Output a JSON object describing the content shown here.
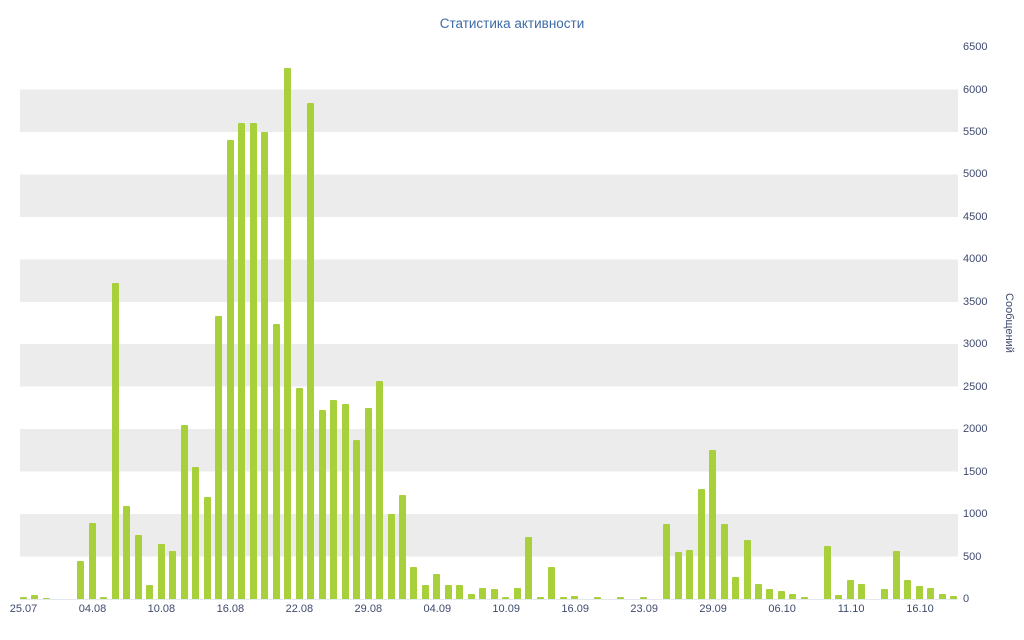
{
  "chart_data": {
    "type": "bar",
    "title": "Статистика активности",
    "xlabel": "",
    "ylabel": "Сообщений",
    "ylim": [
      0,
      6500
    ],
    "ytick_step": 500,
    "y_ticks": [
      0,
      500,
      1000,
      1500,
      2000,
      2500,
      3000,
      3500,
      4000,
      4500,
      5000,
      5500,
      6000,
      6500
    ],
    "grid": "horizontal-stripes",
    "legend": "off",
    "x_labels": [
      "25.07",
      "04.08",
      "10.08",
      "16.08",
      "22.08",
      "29.08",
      "04.09",
      "10.09",
      "16.09",
      "23.09",
      "29.09",
      "06.10",
      "11.10",
      "16.10"
    ],
    "x_label_every": 6,
    "values": [
      30,
      45,
      15,
      0,
      0,
      450,
      900,
      20,
      3720,
      1100,
      750,
      170,
      650,
      560,
      2050,
      1550,
      1200,
      3330,
      5400,
      5600,
      5600,
      5500,
      3240,
      6250,
      2480,
      5840,
      2230,
      2340,
      2300,
      1870,
      2250,
      2570,
      1000,
      1230,
      380,
      170,
      300,
      160,
      170,
      60,
      130,
      120,
      30,
      130,
      730,
      30,
      380,
      30,
      40,
      0,
      30,
      0,
      20,
      0,
      30,
      0,
      880,
      550,
      580,
      1300,
      1750,
      880,
      260,
      700,
      180,
      120,
      100,
      60,
      20,
      0,
      620,
      50,
      220,
      180,
      0,
      120,
      560,
      230,
      150,
      130,
      60,
      40
    ],
    "colors": {
      "bar": "#a8d03a",
      "stripe": "#ececec",
      "title": "#3d6ca5",
      "axis_label": "#3f4a6e",
      "background": "#ffffff"
    }
  }
}
